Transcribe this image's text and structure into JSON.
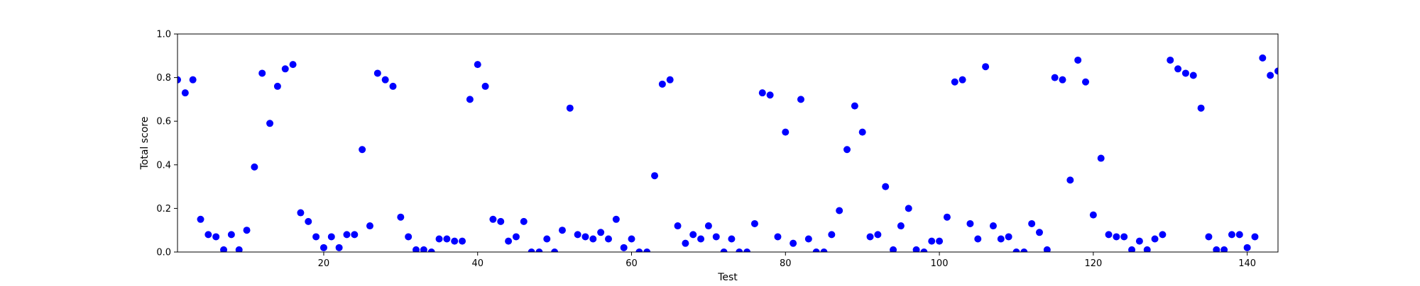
{
  "chart_data": {
    "type": "scatter",
    "title": "",
    "xlabel": "Test",
    "ylabel": "Total score",
    "xlim": [
      1,
      144
    ],
    "ylim": [
      0.0,
      1.0
    ],
    "xticks": [
      20,
      40,
      60,
      80,
      100,
      120,
      140
    ],
    "xtick_labels": [
      "20",
      "40",
      "60",
      "80",
      "100",
      "120",
      "140"
    ],
    "yticks": [
      0.0,
      0.2,
      0.4,
      0.6,
      0.8,
      1.0
    ],
    "ytick_labels": [
      "0.0",
      "0.2",
      "0.4",
      "0.6",
      "0.8",
      "1.0"
    ],
    "grid": false,
    "marker_color": "#0000ff",
    "x": [
      1,
      2,
      3,
      4,
      5,
      6,
      7,
      8,
      9,
      10,
      11,
      12,
      13,
      14,
      15,
      16,
      17,
      18,
      19,
      20,
      21,
      22,
      23,
      24,
      25,
      26,
      27,
      28,
      29,
      30,
      31,
      32,
      33,
      34,
      35,
      36,
      37,
      38,
      39,
      40,
      41,
      42,
      43,
      44,
      45,
      46,
      47,
      48,
      49,
      50,
      51,
      52,
      53,
      54,
      55,
      56,
      57,
      58,
      59,
      60,
      61,
      62,
      63,
      64,
      65,
      66,
      67,
      68,
      69,
      70,
      71,
      72,
      73,
      74,
      75,
      76,
      77,
      78,
      79,
      80,
      81,
      82,
      83,
      84,
      85,
      86,
      87,
      88,
      89,
      90,
      91,
      92,
      93,
      94,
      95,
      96,
      97,
      98,
      99,
      100,
      101,
      102,
      103,
      104,
      105,
      106,
      107,
      108,
      109,
      110,
      111,
      112,
      113,
      114,
      115,
      116,
      117,
      118,
      119,
      120,
      121,
      122,
      123,
      124,
      125,
      126,
      127,
      128,
      129,
      130,
      131,
      132,
      133,
      134,
      135,
      136,
      137,
      138,
      139,
      140,
      141,
      142,
      143,
      144
    ],
    "y": [
      0.79,
      0.73,
      0.79,
      0.15,
      0.08,
      0.07,
      0.01,
      0.08,
      0.01,
      0.1,
      0.39,
      0.82,
      0.59,
      0.76,
      0.84,
      0.86,
      0.18,
      0.14,
      0.07,
      0.02,
      0.07,
      0.02,
      0.08,
      0.08,
      0.47,
      0.12,
      0.82,
      0.79,
      0.76,
      0.16,
      0.07,
      0.01,
      0.01,
      0.0,
      0.06,
      0.06,
      0.05,
      0.05,
      0.7,
      0.86,
      0.76,
      0.15,
      0.14,
      0.05,
      0.07,
      0.14,
      0.0,
      0.0,
      0.06,
      0.0,
      0.1,
      0.66,
      0.08,
      0.07,
      0.06,
      0.09,
      0.06,
      0.15,
      0.02,
      0.06,
      0.0,
      0.0,
      0.35,
      0.77,
      0.79,
      0.12,
      0.04,
      0.08,
      0.06,
      0.12,
      0.07,
      0.0,
      0.06,
      0.0,
      0.0,
      0.13,
      0.73,
      0.72,
      0.07,
      0.55,
      0.04,
      0.7,
      0.06,
      0.0,
      0.0,
      0.08,
      0.19,
      0.47,
      0.67,
      0.55,
      0.07,
      0.08,
      0.3,
      0.01,
      0.12,
      0.2,
      0.01,
      0.0,
      0.05,
      0.05,
      0.16,
      0.78,
      0.79,
      0.13,
      0.06,
      0.85,
      0.12,
      0.06,
      0.07,
      0.0,
      0.0,
      0.13,
      0.09,
      0.01,
      0.8,
      0.79,
      0.33,
      0.88,
      0.78,
      0.17,
      0.43,
      0.08,
      0.07,
      0.07,
      0.01,
      0.05,
      0.01,
      0.06,
      0.08,
      0.88,
      0.84,
      0.82,
      0.81,
      0.66,
      0.07,
      0.01,
      0.01,
      0.08,
      0.08,
      0.02,
      0.07,
      0.89,
      0.81,
      0.83
    ]
  }
}
